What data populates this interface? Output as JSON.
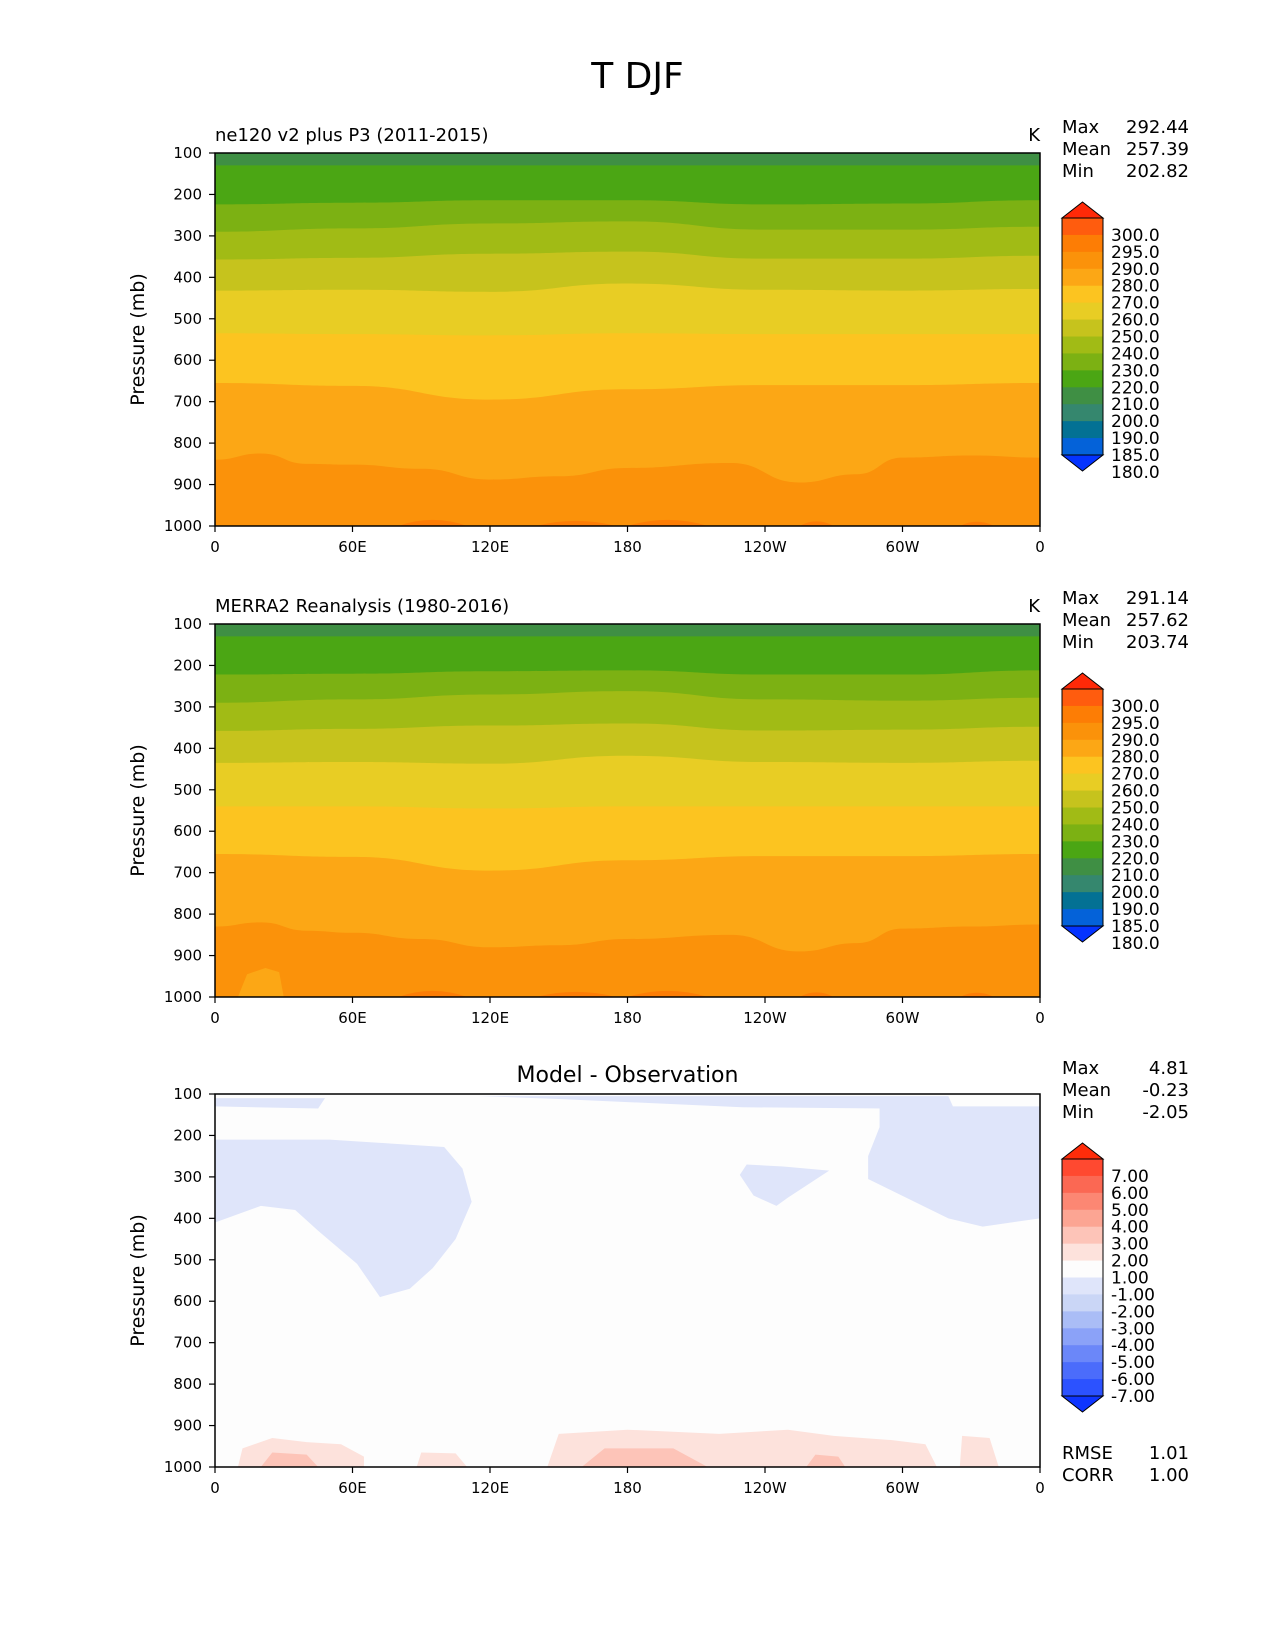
{
  "figure_title": "T DJF",
  "colors": {
    "abs": [
      "#0433ff",
      "#0462d9",
      "#037194",
      "#35876e",
      "#3f8f44",
      "#4ba614",
      "#7cb113",
      "#a1bb15",
      "#c6c31d",
      "#e8cd24",
      "#fcc420",
      "#fca715",
      "#fb920a",
      "#fd7d05",
      "#ff5c0e",
      "#ff2908"
    ],
    "diff": [
      "#0e35ff",
      "#2c52ff",
      "#4b6cfb",
      "#6b87f9",
      "#8ba2f8",
      "#aabdf6",
      "#cad6f6",
      "#dfe5fa",
      "#fdfdfd",
      "#fde2dc",
      "#fdc4b8",
      "#fca593",
      "#fc8773",
      "#fb6853",
      "#ff4930",
      "#ff2c0a"
    ]
  },
  "chart_data": [
    {
      "type": "contourf",
      "title": "ne120 v2 plus P3 (2011-2015)",
      "units": "K",
      "ylabel": "Pressure (mb)",
      "xticks": [
        "0",
        "60E",
        "120E",
        "180",
        "120W",
        "60W",
        "0"
      ],
      "yticks": [
        "100",
        "200",
        "300",
        "400",
        "500",
        "600",
        "700",
        "800",
        "900",
        "1000"
      ],
      "ylim": [
        100,
        1000
      ],
      "stats": [
        {
          "label": "Max",
          "value": "292.44"
        },
        {
          "label": "Mean",
          "value": "257.39"
        },
        {
          "label": "Min",
          "value": "202.82"
        }
      ],
      "colorbar_levels": [
        "300.0",
        "295.0",
        "290.0",
        "280.0",
        "270.0",
        "260.0",
        "250.0",
        "240.0",
        "230.0",
        "220.0",
        "210.0",
        "200.0",
        "190.0",
        "185.0",
        "180.0"
      ],
      "boundaries_mb": [
        [
          [
            0,
            130
          ],
          [
            120,
            130
          ],
          [
            240,
            130
          ],
          [
            360,
            130
          ]
        ],
        [
          [
            0,
            224
          ],
          [
            60,
            220
          ],
          [
            120,
            214
          ],
          [
            180,
            214
          ],
          [
            240,
            224
          ],
          [
            300,
            222
          ],
          [
            360,
            214
          ]
        ],
        [
          [
            0,
            290
          ],
          [
            60,
            282
          ],
          [
            120,
            270
          ],
          [
            180,
            265
          ],
          [
            240,
            285
          ],
          [
            300,
            285
          ],
          [
            360,
            278
          ]
        ],
        [
          [
            0,
            357
          ],
          [
            60,
            353
          ],
          [
            120,
            343
          ],
          [
            180,
            338
          ],
          [
            240,
            355
          ],
          [
            300,
            355
          ],
          [
            360,
            348
          ]
        ],
        [
          [
            0,
            432
          ],
          [
            60,
            430
          ],
          [
            120,
            435
          ],
          [
            180,
            415
          ],
          [
            240,
            430
          ],
          [
            300,
            432
          ],
          [
            360,
            428
          ]
        ],
        [
          [
            0,
            535
          ],
          [
            60,
            537
          ],
          [
            120,
            540
          ],
          [
            180,
            535
          ],
          [
            240,
            537
          ],
          [
            300,
            537
          ],
          [
            360,
            537
          ]
        ],
        [
          [
            0,
            655
          ],
          [
            60,
            662
          ],
          [
            120,
            695
          ],
          [
            180,
            670
          ],
          [
            240,
            660
          ],
          [
            300,
            660
          ],
          [
            360,
            655
          ]
        ],
        [
          [
            0,
            840
          ],
          [
            20,
            825
          ],
          [
            40,
            850
          ],
          [
            60,
            852
          ],
          [
            90,
            862
          ],
          [
            120,
            888
          ],
          [
            150,
            880
          ],
          [
            180,
            860
          ],
          [
            225,
            848
          ],
          [
            255,
            895
          ],
          [
            280,
            875
          ],
          [
            300,
            835
          ],
          [
            330,
            830
          ],
          [
            360,
            835
          ]
        ],
        [
          [
            0,
            1000
          ],
          [
            360,
            1000
          ]
        ]
      ]
    },
    {
      "type": "contourf",
      "title": "MERRA2 Reanalysis (1980-2016)",
      "units": "K",
      "ylabel": "Pressure (mb)",
      "xticks": [
        "0",
        "60E",
        "120E",
        "180",
        "120W",
        "60W",
        "0"
      ],
      "yticks": [
        "100",
        "200",
        "300",
        "400",
        "500",
        "600",
        "700",
        "800",
        "900",
        "1000"
      ],
      "ylim": [
        100,
        1000
      ],
      "stats": [
        {
          "label": "Max",
          "value": "291.14"
        },
        {
          "label": "Mean",
          "value": "257.62"
        },
        {
          "label": "Min",
          "value": "203.74"
        }
      ],
      "colorbar_levels": [
        "300.0",
        "295.0",
        "290.0",
        "280.0",
        "270.0",
        "260.0",
        "250.0",
        "240.0",
        "230.0",
        "220.0",
        "210.0",
        "200.0",
        "190.0",
        "185.0",
        "180.0"
      ],
      "boundaries_mb": [
        [
          [
            0,
            130
          ],
          [
            120,
            130
          ],
          [
            240,
            130
          ],
          [
            360,
            130
          ]
        ],
        [
          [
            0,
            222
          ],
          [
            60,
            220
          ],
          [
            120,
            214
          ],
          [
            180,
            212
          ],
          [
            240,
            222
          ],
          [
            300,
            222
          ],
          [
            360,
            212
          ]
        ],
        [
          [
            0,
            290
          ],
          [
            60,
            282
          ],
          [
            120,
            270
          ],
          [
            180,
            262
          ],
          [
            240,
            282
          ],
          [
            300,
            285
          ],
          [
            360,
            278
          ]
        ],
        [
          [
            0,
            358
          ],
          [
            60,
            353
          ],
          [
            120,
            345
          ],
          [
            180,
            340
          ],
          [
            240,
            357
          ],
          [
            300,
            355
          ],
          [
            360,
            348
          ]
        ],
        [
          [
            0,
            435
          ],
          [
            60,
            433
          ],
          [
            120,
            437
          ],
          [
            180,
            418
          ],
          [
            240,
            433
          ],
          [
            300,
            435
          ],
          [
            360,
            430
          ]
        ],
        [
          [
            0,
            540
          ],
          [
            60,
            540
          ],
          [
            120,
            545
          ],
          [
            180,
            540
          ],
          [
            240,
            540
          ],
          [
            300,
            540
          ],
          [
            360,
            540
          ]
        ],
        [
          [
            0,
            655
          ],
          [
            60,
            662
          ],
          [
            120,
            695
          ],
          [
            180,
            670
          ],
          [
            240,
            660
          ],
          [
            300,
            660
          ],
          [
            360,
            655
          ]
        ],
        [
          [
            0,
            830
          ],
          [
            20,
            820
          ],
          [
            40,
            840
          ],
          [
            60,
            845
          ],
          [
            90,
            860
          ],
          [
            120,
            880
          ],
          [
            150,
            875
          ],
          [
            180,
            860
          ],
          [
            225,
            850
          ],
          [
            255,
            890
          ],
          [
            280,
            870
          ],
          [
            300,
            835
          ],
          [
            330,
            830
          ],
          [
            360,
            825
          ]
        ],
        [
          [
            0,
            1000
          ],
          [
            360,
            1000
          ]
        ]
      ]
    },
    {
      "type": "contourf",
      "title": "Model - Observation",
      "units": "",
      "ylabel": "Pressure (mb)",
      "xticks": [
        "0",
        "60E",
        "120E",
        "180",
        "120W",
        "60W",
        "0"
      ],
      "yticks": [
        "100",
        "200",
        "300",
        "400",
        "500",
        "600",
        "700",
        "800",
        "900",
        "1000"
      ],
      "ylim": [
        100,
        1000
      ],
      "stats": [
        {
          "label": "Max",
          "value": "4.81"
        },
        {
          "label": "Mean",
          "value": "-0.23"
        },
        {
          "label": "Min",
          "value": "-2.05"
        }
      ],
      "colorbar_levels": [
        "7.00",
        "6.00",
        "5.00",
        "4.00",
        "3.00",
        "2.00",
        "1.00",
        "-1.00",
        "-2.00",
        "-3.00",
        "-4.00",
        "-5.00",
        "-6.00",
        "-7.00"
      ],
      "metrics": [
        {
          "label": "RMSE",
          "value": "1.01"
        },
        {
          "label": "CORR",
          "value": "1.00"
        }
      ],
      "negative_regions": [
        [
          [
            0,
            210
          ],
          [
            50,
            210
          ],
          [
            100,
            228
          ],
          [
            108,
            280
          ],
          [
            112,
            360
          ],
          [
            105,
            450
          ],
          [
            95,
            520
          ],
          [
            85,
            570
          ],
          [
            72,
            590
          ],
          [
            62,
            510
          ],
          [
            45,
            430
          ],
          [
            35,
            380
          ],
          [
            20,
            370
          ],
          [
            0,
            410
          ]
        ],
        [
          [
            0,
            110
          ],
          [
            48,
            110
          ],
          [
            45,
            135
          ],
          [
            0,
            130
          ]
        ],
        [
          [
            115,
            105
          ],
          [
            320,
            105
          ],
          [
            322,
            130
          ],
          [
            315,
            140
          ],
          [
            292,
            135
          ],
          [
            230,
            132
          ],
          [
            150,
            112
          ]
        ],
        [
          [
            290,
            130
          ],
          [
            360,
            130
          ],
          [
            360,
            400
          ],
          [
            335,
            420
          ],
          [
            320,
            400
          ],
          [
            285,
            305
          ],
          [
            285,
            250
          ],
          [
            290,
            180
          ]
        ],
        [
          [
            232,
            270
          ],
          [
            248,
            275
          ],
          [
            268,
            285
          ],
          [
            250,
            350
          ],
          [
            245,
            370
          ],
          [
            235,
            345
          ],
          [
            229,
            295
          ]
        ]
      ],
      "positive_regions": [
        [
          [
            10,
            1000
          ],
          [
            12,
            955
          ],
          [
            25,
            930
          ],
          [
            40,
            940
          ],
          [
            55,
            945
          ],
          [
            65,
            975
          ],
          [
            65,
            1000
          ]
        ],
        [
          [
            145,
            1000
          ],
          [
            150,
            920
          ],
          [
            180,
            910
          ],
          [
            220,
            920
          ],
          [
            250,
            910
          ],
          [
            270,
            925
          ],
          [
            295,
            935
          ],
          [
            310,
            945
          ],
          [
            315,
            1000
          ]
        ],
        [
          [
            88,
            1000
          ],
          [
            90,
            965
          ],
          [
            105,
            967
          ],
          [
            110,
            1000
          ]
        ],
        [
          [
            325,
            1000
          ],
          [
            326,
            925
          ],
          [
            338,
            930
          ],
          [
            342,
            1000
          ]
        ]
      ],
      "strong_positive_regions": [
        [
          [
            20,
            1000
          ],
          [
            25,
            965
          ],
          [
            40,
            970
          ],
          [
            45,
            1000
          ]
        ],
        [
          [
            160,
            1000
          ],
          [
            170,
            955
          ],
          [
            200,
            955
          ],
          [
            215,
            1000
          ]
        ],
        [
          [
            258,
            1000
          ],
          [
            262,
            970
          ],
          [
            272,
            975
          ],
          [
            275,
            1000
          ]
        ]
      ]
    }
  ]
}
